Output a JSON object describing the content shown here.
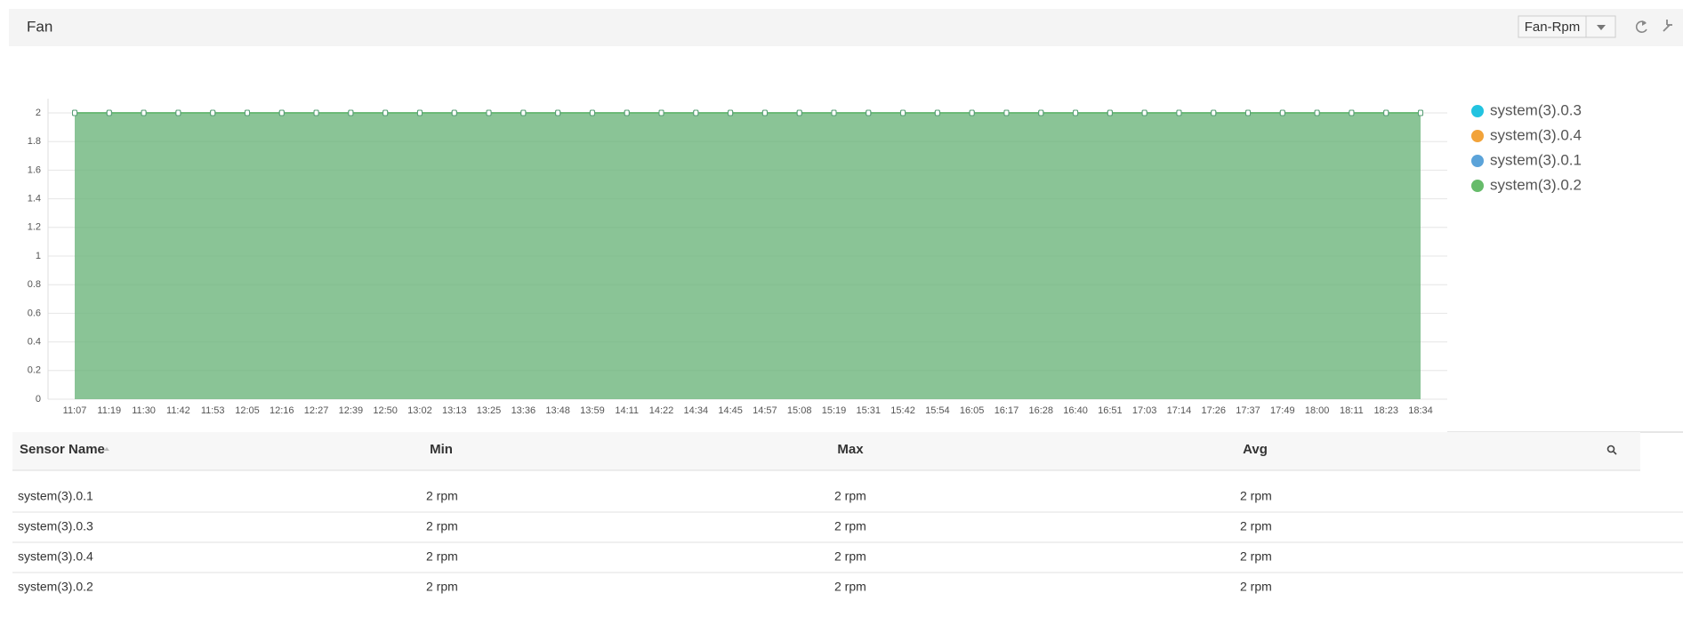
{
  "header": {
    "title": "Fan",
    "selector": "Fan-Rpm"
  },
  "chart_data": {
    "type": "area",
    "categories": [
      "11:07",
      "11:19",
      "11:30",
      "11:42",
      "11:53",
      "12:05",
      "12:16",
      "12:27",
      "12:39",
      "12:50",
      "13:02",
      "13:13",
      "13:25",
      "13:36",
      "13:48",
      "13:59",
      "14:11",
      "14:22",
      "14:34",
      "14:45",
      "14:57",
      "15:08",
      "15:19",
      "15:31",
      "15:42",
      "15:54",
      "16:05",
      "16:17",
      "16:28",
      "16:40",
      "16:51",
      "17:03",
      "17:14",
      "17:26",
      "17:37",
      "17:49",
      "18:00",
      "18:11",
      "18:23",
      "18:34"
    ],
    "series": [
      {
        "name": "system(3).0.3",
        "color": "#22c3e0",
        "values": [
          2,
          2,
          2,
          2,
          2,
          2,
          2,
          2,
          2,
          2,
          2,
          2,
          2,
          2,
          2,
          2,
          2,
          2,
          2,
          2,
          2,
          2,
          2,
          2,
          2,
          2,
          2,
          2,
          2,
          2,
          2,
          2,
          2,
          2,
          2,
          2,
          2,
          2,
          2,
          2
        ]
      },
      {
        "name": "system(3).0.4",
        "color": "#f2a33a",
        "values": [
          2,
          2,
          2,
          2,
          2,
          2,
          2,
          2,
          2,
          2,
          2,
          2,
          2,
          2,
          2,
          2,
          2,
          2,
          2,
          2,
          2,
          2,
          2,
          2,
          2,
          2,
          2,
          2,
          2,
          2,
          2,
          2,
          2,
          2,
          2,
          2,
          2,
          2,
          2,
          2
        ]
      },
      {
        "name": "system(3).0.1",
        "color": "#5ba3d9",
        "values": [
          2,
          2,
          2,
          2,
          2,
          2,
          2,
          2,
          2,
          2,
          2,
          2,
          2,
          2,
          2,
          2,
          2,
          2,
          2,
          2,
          2,
          2,
          2,
          2,
          2,
          2,
          2,
          2,
          2,
          2,
          2,
          2,
          2,
          2,
          2,
          2,
          2,
          2,
          2,
          2
        ]
      },
      {
        "name": "system(3).0.2",
        "color": "#66bb6a",
        "values": [
          2,
          2,
          2,
          2,
          2,
          2,
          2,
          2,
          2,
          2,
          2,
          2,
          2,
          2,
          2,
          2,
          2,
          2,
          2,
          2,
          2,
          2,
          2,
          2,
          2,
          2,
          2,
          2,
          2,
          2,
          2,
          2,
          2,
          2,
          2,
          2,
          2,
          2,
          2,
          2
        ]
      }
    ],
    "ylim": [
      0,
      2
    ],
    "yticks": [
      0,
      0.2,
      0.4,
      0.6,
      0.8,
      1,
      1.2,
      1.4,
      1.6,
      1.8,
      2
    ],
    "grid": true,
    "legend": "right"
  },
  "table": {
    "columns": [
      "Sensor Name",
      "Min",
      "Max",
      "Avg"
    ],
    "rows": [
      [
        "system(3).0.1",
        "2 rpm",
        "2 rpm",
        "2 rpm"
      ],
      [
        "system(3).0.3",
        "2 rpm",
        "2 rpm",
        "2 rpm"
      ],
      [
        "system(3).0.4",
        "2 rpm",
        "2 rpm",
        "2 rpm"
      ],
      [
        "system(3).0.2",
        "2 rpm",
        "2 rpm",
        "2 rpm"
      ]
    ]
  }
}
